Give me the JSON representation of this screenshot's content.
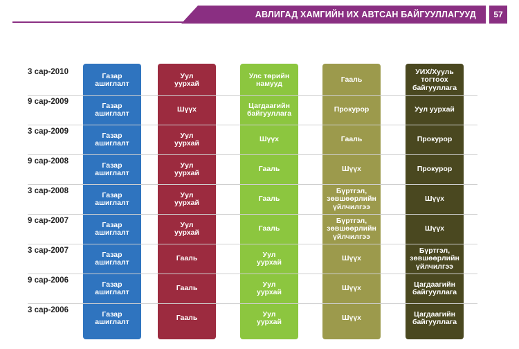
{
  "header": {
    "title": "АВЛИГАД ХАМГИЙН ИХ АВТСАН БАЙГУУЛЛАГУУД",
    "page_number": "57"
  },
  "table": {
    "column_colors": [
      "#2f74bf",
      "#9c2b3f",
      "#8cc63f",
      "#9c9a4c",
      "#4a4820"
    ],
    "rows": [
      {
        "period": "3 сар-2010",
        "cells": [
          "Газар\nашиглалт",
          "Уул\nуурхай",
          "Улс төрийн\nнамууд",
          "Гааль",
          "УИХ/Хууль тогтоох\nбайгууллага"
        ]
      },
      {
        "period": "9 сар-2009",
        "cells": [
          "Газар\nашиглалт",
          "Шүүх",
          "Цагдаагийн\nбайгууллага",
          "Прокурор",
          "Уул уурхай"
        ]
      },
      {
        "period": "3 сар-2009",
        "cells": [
          "Газар\nашиглалт",
          "Уул\nуурхай",
          "Шүүх",
          "Гааль",
          "Прокурор"
        ]
      },
      {
        "period": "9 сар-2008",
        "cells": [
          "Газар\nашиглалт",
          "Уул\nуурхай",
          "Гааль",
          "Шүүх",
          "Прокурор"
        ]
      },
      {
        "period": "3 сар-2008",
        "cells": [
          "Газар\nашиглалт",
          "Уул\nуурхай",
          "Гааль",
          "Бүртгэл,\nзөвшөөрлийн\nүйлчилгээ",
          "Шүүх"
        ]
      },
      {
        "period": "9 сар-2007",
        "cells": [
          "Газар\nашиглалт",
          "Уул\nуурхай",
          "Гааль",
          "Бүртгэл,\nзөвшөөрлийн\nүйлчилгээ",
          "Шүүх"
        ]
      },
      {
        "period": "3 сар-2007",
        "cells": [
          "Газар\nашиглалт",
          "Гааль",
          "Уул\nуурхай",
          "Шүүх",
          "Бүртгэл,\nзөвшөөрлийн\nүйлчилгээ"
        ]
      },
      {
        "period": "9 сар-2006",
        "cells": [
          "Газар\nашиглалт",
          "Гааль",
          "Уул\nуурхай",
          "Шүүх",
          "Цагдаагийн\nбайгууллага"
        ]
      },
      {
        "period": "3 сар-2006",
        "cells": [
          "Газар\nашиглалт",
          "Гааль",
          "Уул\nуурхай",
          "Шүүх",
          "Цагдаагийн\nбайгууллага"
        ]
      }
    ]
  }
}
